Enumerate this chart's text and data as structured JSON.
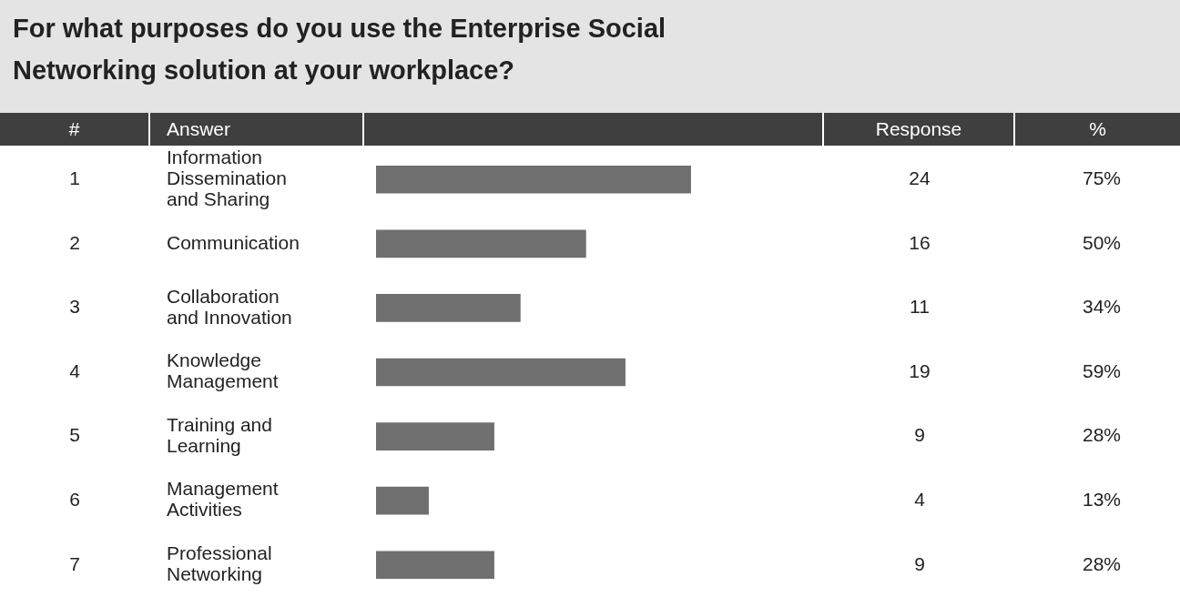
{
  "chart_data": {
    "type": "bar",
    "orientation": "horizontal",
    "title": "For what purposes do you use the Enterprise Social Networking solution at your workplace?",
    "categories": [
      "Information Dissemination and Sharing",
      "Communication",
      "Collaboration and Innovation",
      "Knowledge Management",
      "Training and Learning",
      "Management Activities",
      "Professional Networking"
    ],
    "values": [
      24,
      16,
      11,
      19,
      9,
      4,
      9
    ],
    "color": "#6f6f6f",
    "data_labels": true,
    "annotations": [
      "#",
      "Answer",
      "Response",
      "%",
      "1",
      "2",
      "3",
      "4",
      "5",
      "6",
      "7",
      "75%",
      "50%",
      "34%",
      "59%",
      "28%",
      "13%",
      "28%"
    ]
  }
}
